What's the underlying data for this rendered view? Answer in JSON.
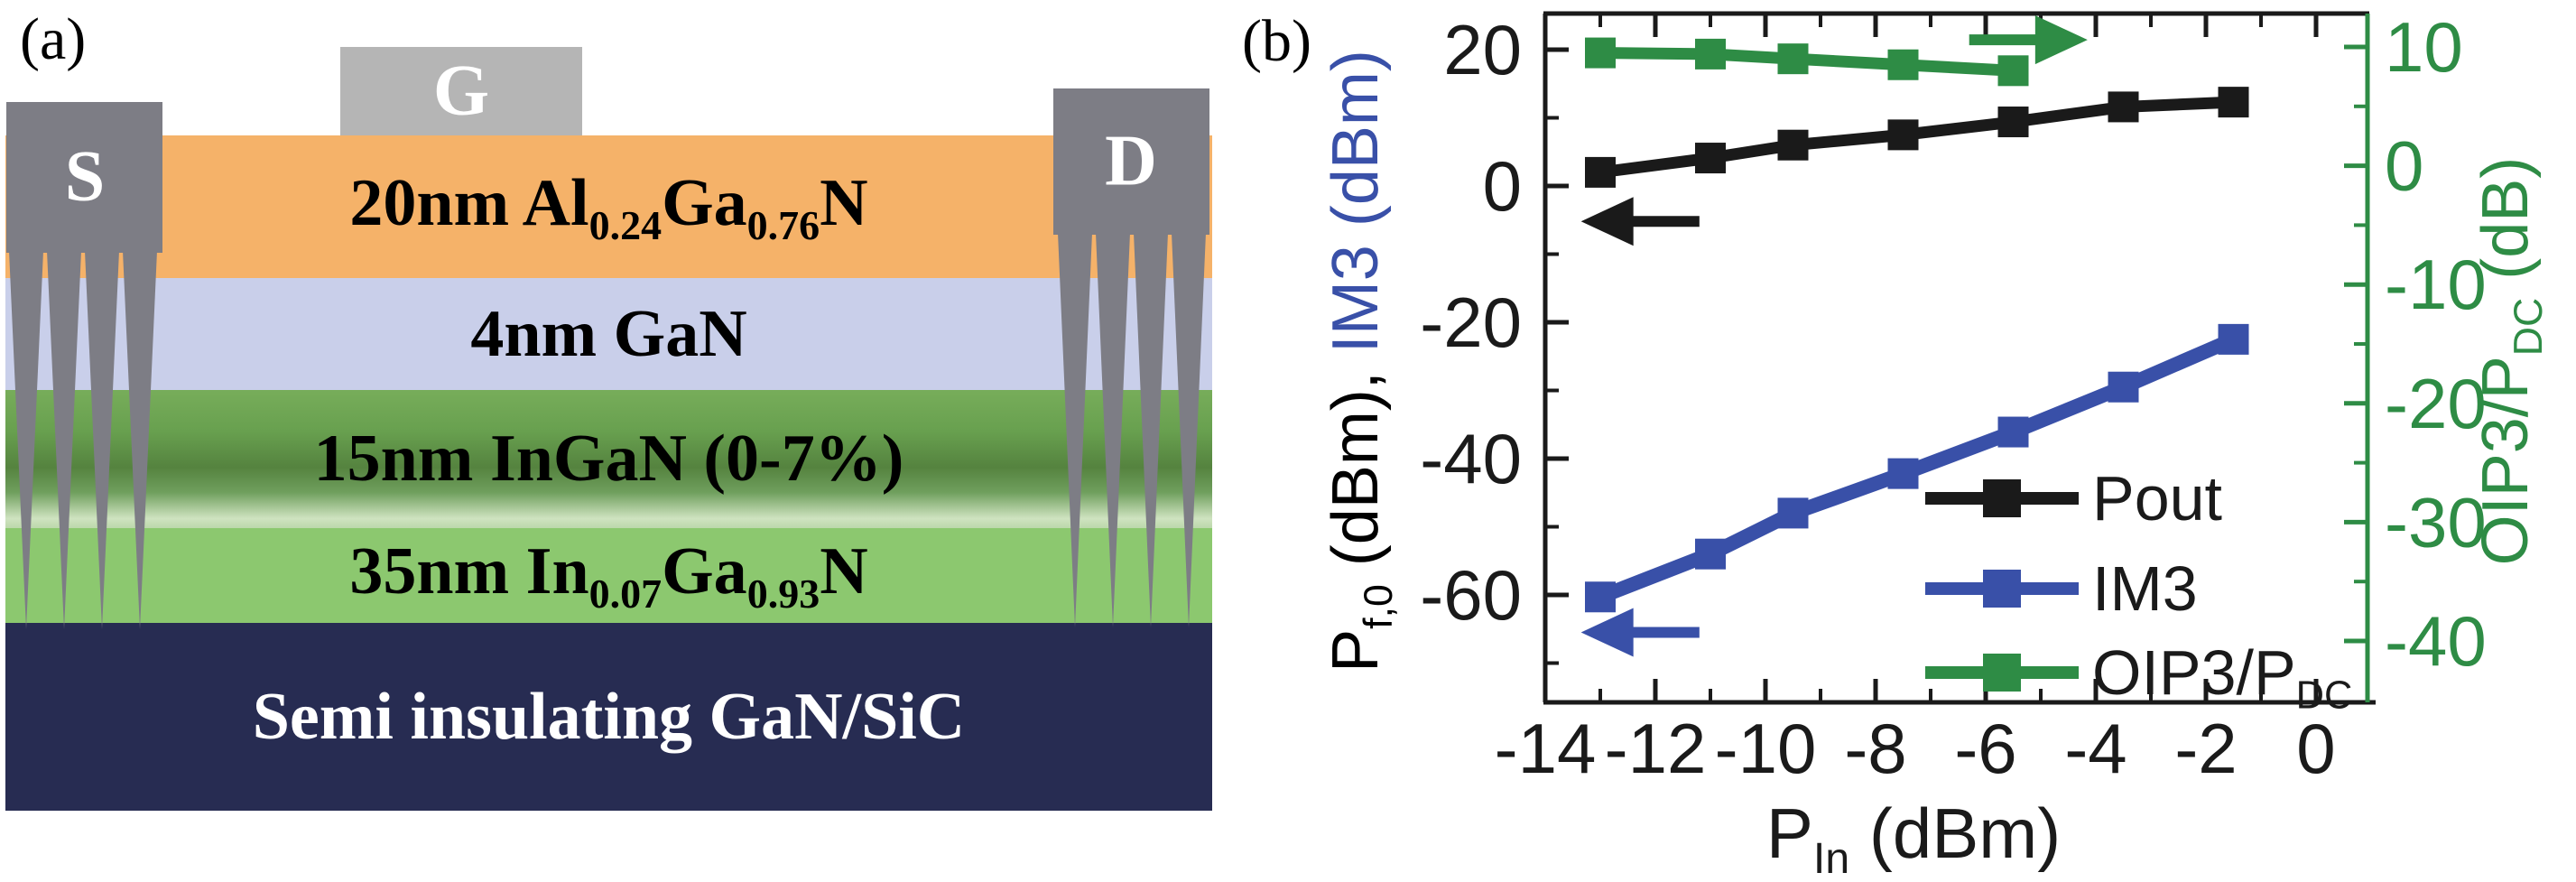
{
  "panel_a": {
    "tag": "(a)",
    "contacts": {
      "source": "S",
      "gate": "G",
      "drain": "D"
    },
    "layers": [
      {
        "id": "algan-barrier",
        "color": "#F5B269",
        "label": [
          [
            "t",
            "20nm Al"
          ],
          [
            "s",
            "0.24"
          ],
          [
            "t",
            "Ga"
          ],
          [
            "s",
            "0.76"
          ],
          [
            "t",
            "N"
          ]
        ]
      },
      {
        "id": "gan-spacer",
        "color": "#C9CFEA",
        "label": [
          [
            "t",
            "4nm GaN"
          ]
        ]
      },
      {
        "id": "ingan-channel",
        "color": "#5A8A43",
        "label": [
          [
            "t",
            "15nm InGaN (0-7%)"
          ]
        ]
      },
      {
        "id": "ingan-buffer",
        "color": "#8CC86F",
        "label": [
          [
            "t",
            "35nm In"
          ],
          [
            "s",
            "0.07"
          ],
          [
            "t",
            "Ga"
          ],
          [
            "s",
            "0.93"
          ],
          [
            "t",
            "N"
          ]
        ]
      },
      {
        "id": "substrate",
        "color": "#272C52",
        "label": [
          [
            "t",
            "Semi insulating GaN/SiC"
          ]
        ]
      }
    ]
  },
  "chart_data": {
    "type": "line",
    "panel_tag": "(b)",
    "title": "",
    "xlabel_parts": [
      [
        "t",
        "P"
      ],
      [
        "s",
        "In"
      ],
      [
        "t",
        " (dBm)"
      ]
    ],
    "ylabel_left_parts": [
      [
        "t",
        "P",
        "#000000"
      ],
      [
        "s",
        "f,0",
        "#000000"
      ],
      [
        "t",
        " (dBm), ",
        "#000000"
      ],
      [
        "t",
        "IM3 (dBm)",
        "#3950A8"
      ]
    ],
    "ylabel_right_parts": [
      [
        "t",
        "OIP3/P"
      ],
      [
        "s",
        "DC"
      ],
      [
        "t",
        " (dB)"
      ]
    ],
    "x_axis": {
      "range": [
        -14,
        0.95
      ],
      "major_ticks": [
        -14,
        -12,
        -10,
        -8,
        -6,
        -4,
        -2,
        0
      ],
      "minor_ticks": [
        -13,
        -11,
        -9,
        -7,
        -5,
        -3,
        -1
      ]
    },
    "left_axis": {
      "color": "#1A1A1A",
      "range": [
        -75.8,
        25.3
      ],
      "major_ticks": [
        20,
        0,
        -20,
        -40,
        -60
      ],
      "minor_ticks": [
        10,
        -10,
        -30,
        -50,
        -70
      ]
    },
    "right_axis": {
      "color": "#2E8C45",
      "range": [
        -45.2,
        12.8
      ],
      "major_ticks": [
        10,
        0,
        -10,
        -20,
        -30,
        -40
      ],
      "minor_ticks": [
        5,
        -5,
        -15,
        -25,
        -35
      ]
    },
    "grid": false,
    "legend_position": "center-right",
    "series": [
      {
        "name": "Pout",
        "axis": "left",
        "color": "#1A1A1A",
        "marker": "square",
        "x": [
          -13,
          -11,
          -9.5,
          -7.5,
          -5.5,
          -3.5,
          -1.5
        ],
        "y": [
          2.0,
          4.1,
          6.0,
          7.5,
          9.4,
          11.6,
          12.3
        ]
      },
      {
        "name": "IM3",
        "axis": "left",
        "color": "#3950A8",
        "marker": "square",
        "x": [
          -13,
          -11,
          -9.5,
          -7.5,
          -5.5,
          -3.5,
          -1.5
        ],
        "y": [
          -60.3,
          -54.0,
          -48.0,
          -42.2,
          -36.1,
          -29.5,
          -22.5
        ]
      },
      {
        "name": "OIP3/PDC",
        "axis": "right",
        "color": "#2E8C45",
        "marker": "square",
        "x": [
          -13,
          -11,
          -9.5,
          -7.5,
          -5.5
        ],
        "y": [
          9.5,
          9.4,
          9.0,
          8.5,
          8.0
        ]
      }
    ],
    "legend": [
      {
        "label_parts": [
          [
            "t",
            "Pout"
          ]
        ],
        "color": "#1A1A1A"
      },
      {
        "label_parts": [
          [
            "t",
            "IM3"
          ]
        ],
        "color": "#3950A8"
      },
      {
        "label_parts": [
          [
            "t",
            "OIP3/P"
          ],
          [
            "s",
            "DC"
          ]
        ],
        "color": "#2E8C45"
      }
    ],
    "arrows": [
      {
        "axis": "left",
        "color": "#1A1A1A",
        "y": -5.2,
        "from_x": -11.2,
        "to_x": -13.35,
        "dir": "left"
      },
      {
        "axis": "left",
        "color": "#3950A8",
        "y": -65.5,
        "from_x": -11.2,
        "to_x": -13.35,
        "dir": "left"
      },
      {
        "axis": "right",
        "color": "#2E8C45",
        "y": 10.6,
        "from_x": -6.3,
        "to_x": -4.15,
        "dir": "right"
      }
    ]
  }
}
